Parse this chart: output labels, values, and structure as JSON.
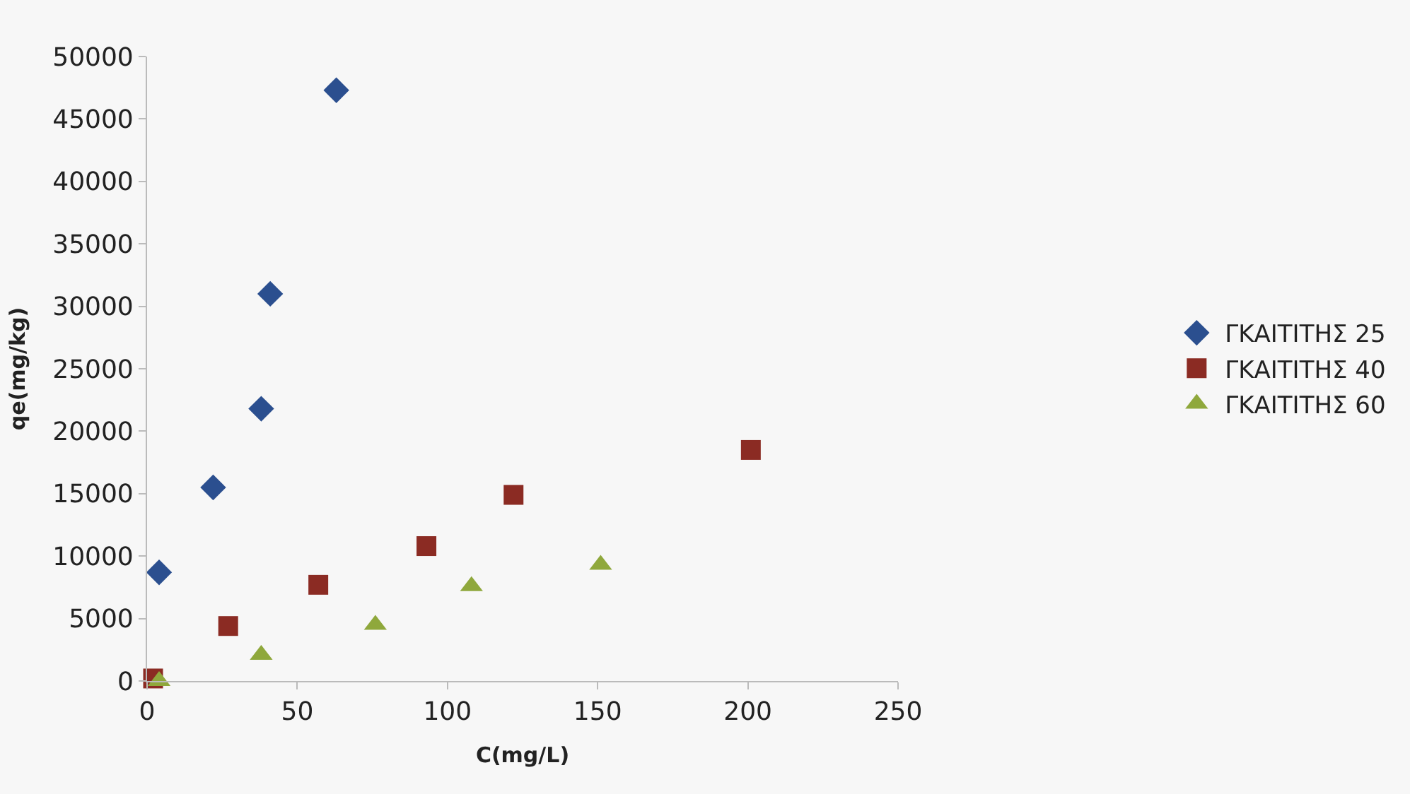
{
  "chart_data": {
    "type": "scatter",
    "xlabel": "C(mg/L)",
    "ylabel": "qe(mg/kg)",
    "xlim": [
      0,
      250
    ],
    "xticks": [
      0,
      50,
      100,
      150,
      200,
      250
    ],
    "ylim": [
      0,
      50000
    ],
    "yticks": [
      0,
      5000,
      10000,
      15000,
      20000,
      25000,
      30000,
      35000,
      40000,
      45000,
      50000
    ],
    "grid": false,
    "legend": "right",
    "series": [
      {
        "name": "ΓΚΑΙΤΙΤΗΣ 25",
        "color": "#2b4f8f",
        "marker": "diamond",
        "x": [
          4,
          22,
          38,
          41,
          63
        ],
        "values": [
          8700,
          15500,
          21800,
          31000,
          47300
        ]
      },
      {
        "name": "ΓΚΑΙΤΙΤΗΣ 40",
        "color": "#8b2b23",
        "marker": "square",
        "x": [
          2,
          27,
          57,
          93,
          122,
          201
        ],
        "values": [
          200,
          4400,
          7700,
          10800,
          14900,
          18500
        ]
      },
      {
        "name": "ΓΚΑΙΤΙΤΗΣ 60",
        "color": "#8fa83c",
        "marker": "triangle",
        "x": [
          4,
          38,
          76,
          108,
          151
        ],
        "values": [
          0,
          2100,
          4500,
          7600,
          9300
        ]
      }
    ]
  }
}
